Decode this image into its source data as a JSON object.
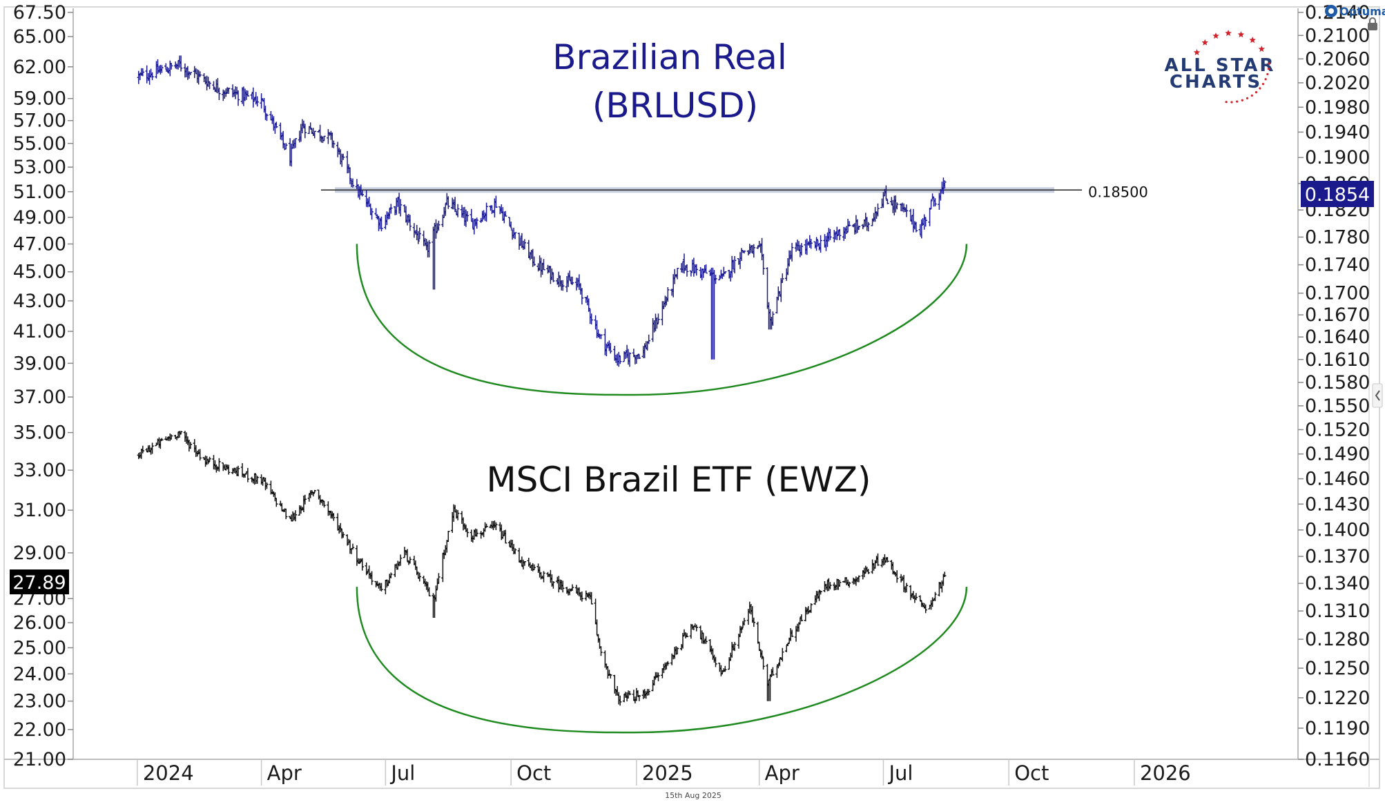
{
  "brand": {
    "label": "Optuma"
  },
  "logo": {
    "line1": "ALL STAR",
    "line2": "CHARTS"
  },
  "footer": {
    "date": "15th Aug 2025"
  },
  "colors": {
    "brl": "#1a1a8c",
    "ewz": "#111111",
    "curve": "#1f8a1f",
    "ref_line": "#222222",
    "brl_badge": "#1a1a8c",
    "ewz_badge": "#000000",
    "logo_blue": "#233a73",
    "logo_red": "#d0232c"
  },
  "chart_data": {
    "type": "line",
    "render": "ohlc-bars",
    "x_tick_labels": [
      "2024",
      "Apr",
      "Jul",
      "Oct",
      "2025",
      "Apr",
      "Jul",
      "Oct",
      "2026"
    ],
    "xlim": [
      "2023-11-15",
      "2026-05-01"
    ],
    "panels": [
      {
        "title": "Brazilian Real",
        "subtitle": "(BRLUSD)",
        "axis": "right",
        "scale": "log",
        "ylim": [
          0.116,
          0.214
        ],
        "y_tick_labels": [
          "0.2140",
          "0.2100",
          "0.2060",
          "0.2020",
          "0.1980",
          "0.1940",
          "0.1900",
          "0.1860",
          "0.1820",
          "0.1780",
          "0.1740",
          "0.1700",
          "0.1670",
          "0.1640",
          "0.1610",
          "0.1580",
          "0.1550",
          "0.1520",
          "0.1490",
          "0.1460",
          "0.1430",
          "0.1400",
          "0.1370",
          "0.1340",
          "0.1310",
          "0.1280",
          "0.1250",
          "0.1220",
          "0.1190",
          "0.1160"
        ],
        "last_value": "0.1854",
        "reference_line": {
          "label": "0.18500",
          "value": 0.185
        },
        "series": [
          {
            "x": [
              "2024-01-02",
              "2024-02-01",
              "2024-03-01",
              "2024-04-01",
              "2024-04-22",
              "2024-05-01",
              "2024-05-22",
              "2024-06-10",
              "2024-06-28",
              "2024-07-10",
              "2024-07-31",
              "2024-08-15",
              "2024-09-02",
              "2024-09-20",
              "2024-10-05",
              "2024-10-20",
              "2024-11-05",
              "2024-11-20",
              "2024-12-05",
              "2024-12-18",
              "2025-01-06",
              "2025-01-20",
              "2025-02-03",
              "2025-02-18",
              "2025-03-05",
              "2025-03-20",
              "2025-04-02",
              "2025-04-09",
              "2025-04-25",
              "2025-05-15",
              "2025-06-01",
              "2025-06-20",
              "2025-07-01",
              "2025-07-15",
              "2025-07-28",
              "2025-08-05",
              "2025-08-15"
            ],
            "y": [
              0.203,
              0.205,
              0.201,
              0.199,
              0.19,
              0.195,
              0.193,
              0.185,
              0.18,
              0.183,
              0.176,
              0.183,
              0.18,
              0.183,
              0.178,
              0.174,
              0.172,
              0.171,
              0.164,
              0.161,
              0.162,
              0.168,
              0.174,
              0.173,
              0.172,
              0.176,
              0.176,
              0.166,
              0.176,
              0.177,
              0.179,
              0.18,
              0.184,
              0.182,
              0.179,
              0.183,
              0.1854
            ]
          }
        ],
        "curve": {
          "x_start": "2024-06-10",
          "x_end": "2025-08-31",
          "bottom_x": "2024-12-30",
          "y_start": 0.177,
          "y_bottom": 0.1564
        }
      },
      {
        "title": "MSCI Brazil ETF (EWZ)",
        "axis": "left",
        "scale": "log",
        "ylim": [
          21.0,
          67.5
        ],
        "y_tick_labels": [
          "67.50",
          "65.00",
          "62.00",
          "59.00",
          "57.00",
          "55.00",
          "53.00",
          "51.00",
          "49.00",
          "47.00",
          "45.00",
          "43.00",
          "41.00",
          "39.00",
          "37.00",
          "35.00",
          "33.00",
          "31.00",
          "29.00",
          "27.00",
          "26.00",
          "25.00",
          "24.00",
          "23.00",
          "22.00",
          "21.00"
        ],
        "last_value": "27.89",
        "series": [
          {
            "x": [
              "2024-01-02",
              "2024-01-31",
              "2024-02-20",
              "2024-03-10",
              "2024-04-01",
              "2024-04-22",
              "2024-05-10",
              "2024-06-10",
              "2024-06-28",
              "2024-07-15",
              "2024-08-05",
              "2024-08-20",
              "2024-09-02",
              "2024-09-20",
              "2024-10-10",
              "2024-11-05",
              "2024-11-28",
              "2024-12-05",
              "2024-12-18",
              "2025-01-06",
              "2025-01-25",
              "2025-02-12",
              "2025-03-05",
              "2025-03-25",
              "2025-04-07",
              "2025-04-25",
              "2025-05-20",
              "2025-06-10",
              "2025-07-01",
              "2025-07-20",
              "2025-08-01",
              "2025-08-15"
            ],
            "y": [
              33.8,
              35.0,
              33.5,
              33.0,
              32.5,
              30.5,
              32.0,
              28.8,
              27.3,
              29.0,
              26.9,
              31.0,
              29.8,
              30.2,
              28.5,
              27.6,
              27.0,
              25.0,
              23.1,
              23.2,
              24.5,
              26.0,
              24.0,
              26.6,
              23.6,
              25.6,
              27.6,
              27.8,
              28.8,
              27.3,
              26.5,
              27.89
            ]
          }
        ],
        "curve": {
          "x_start": "2024-06-10",
          "x_end": "2025-08-31",
          "bottom_x": "2024-12-30",
          "y_start": 27.5,
          "y_bottom": 21.9
        }
      }
    ]
  }
}
